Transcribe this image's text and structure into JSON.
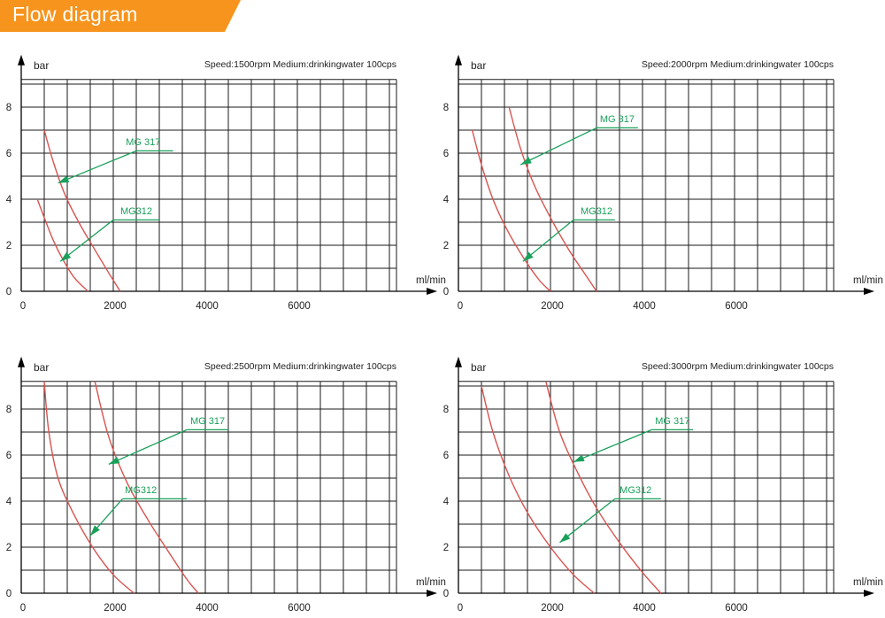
{
  "header": {
    "title": "Flow diagram",
    "accent_color": "#f7941d"
  },
  "colors": {
    "curve": "#d9534f",
    "label": "#19a05a",
    "grid": "#1a1a1a"
  },
  "chart_data": [
    {
      "type": "line",
      "title": "Speed:1500rpm   Medium:drinkingwater 100cps",
      "ylabel": "bar",
      "xlabel": "ml/min",
      "xlim": [
        0,
        8800
      ],
      "ylim": [
        0,
        9.2
      ],
      "xticks": [
        0,
        2000,
        4000,
        6000
      ],
      "yticks": [
        0,
        2,
        4,
        6,
        8
      ],
      "grid": true,
      "series": [
        {
          "name": "MG 317",
          "x": [
            500,
            700,
            950,
            1250,
            1600,
            1900,
            2150
          ],
          "y": [
            7,
            5.6,
            4.2,
            3.0,
            1.8,
            0.8,
            0
          ]
        },
        {
          "name": "MG312",
          "x": [
            350,
            500,
            700,
            900,
            1150,
            1450
          ],
          "y": [
            4,
            3.2,
            2.2,
            1.4,
            0.6,
            0
          ]
        }
      ],
      "annotations": [
        {
          "text": "MG 317",
          "x": 2650,
          "y": 6.35,
          "lx": [
            2500,
            3300
          ],
          "ly": 6.1,
          "ax": 800,
          "ay": 4.7
        },
        {
          "text": "MG312",
          "x": 2500,
          "y": 3.35,
          "lx": [
            2000,
            3000
          ],
          "ly": 3.1,
          "ax": 850,
          "ay": 1.3
        }
      ]
    },
    {
      "type": "line",
      "title": "Speed:2000rpm   Medium:drinkingwater 100cps",
      "ylabel": "bar",
      "xlabel": "ml/min",
      "xlim": [
        0,
        8800
      ],
      "ylim": [
        0,
        9.2
      ],
      "xticks": [
        0,
        2000,
        4000,
        6000
      ],
      "yticks": [
        0,
        2,
        4,
        6,
        8
      ],
      "grid": true,
      "series": [
        {
          "name": "MG 317",
          "x": [
            1100,
            1350,
            1650,
            2000,
            2400,
            2800,
            3000
          ],
          "y": [
            8,
            6.2,
            4.6,
            3.2,
            1.8,
            0.6,
            0
          ]
        },
        {
          "name": "MG312",
          "x": [
            300,
            500,
            750,
            1050,
            1400,
            1750,
            2000
          ],
          "y": [
            7,
            5.5,
            4.0,
            2.7,
            1.5,
            0.5,
            0
          ]
        }
      ],
      "annotations": [
        {
          "text": "MG 317",
          "x": 3450,
          "y": 7.35,
          "lx": [
            3000,
            3900
          ],
          "ly": 7.1,
          "ax": 1350,
          "ay": 5.5
        },
        {
          "text": "MG312",
          "x": 3000,
          "y": 3.35,
          "lx": [
            2500,
            3400
          ],
          "ly": 3.1,
          "ax": 1400,
          "ay": 1.3
        }
      ]
    },
    {
      "type": "line",
      "title": "Speed:2500rpm   Medium:drinkingwater 100cps",
      "ylabel": "bar",
      "xlabel": "ml/min",
      "xlim": [
        0,
        8800
      ],
      "ylim": [
        0,
        9.2
      ],
      "xticks": [
        0,
        2000,
        4000,
        6000
      ],
      "yticks": [
        0,
        2,
        4,
        6,
        8
      ],
      "grid": true,
      "series": [
        {
          "name": "MG 317",
          "x": [
            1600,
            1900,
            2300,
            2750,
            3200,
            3600,
            3850
          ],
          "y": [
            9.2,
            6.8,
            4.8,
            3.2,
            1.8,
            0.6,
            0
          ]
        },
        {
          "name": "MG312",
          "x": [
            500,
            600,
            800,
            1150,
            1550,
            2000,
            2450
          ],
          "y": [
            9.2,
            7.0,
            5.0,
            3.4,
            2.0,
            0.8,
            0
          ]
        }
      ],
      "annotations": [
        {
          "text": "MG 317",
          "x": 4050,
          "y": 7.35,
          "lx": [
            3600,
            4500
          ],
          "ly": 7.1,
          "ax": 1900,
          "ay": 5.6
        },
        {
          "text": "MG312",
          "x": 2600,
          "y": 4.35,
          "lx": [
            2200,
            3600
          ],
          "ly": 4.1,
          "ax": 1500,
          "ay": 2.5
        }
      ]
    },
    {
      "type": "line",
      "title": "Speed:3000rpm   Medium:drinkingwater 100cps",
      "ylabel": "bar",
      "xlabel": "ml/min",
      "xlim": [
        0,
        8800
      ],
      "ylim": [
        0,
        9.2
      ],
      "xticks": [
        0,
        2000,
        4000,
        6000
      ],
      "yticks": [
        0,
        2,
        4,
        6,
        8
      ],
      "grid": true,
      "series": [
        {
          "name": "MG 317",
          "x": [
            1900,
            2200,
            2600,
            3000,
            3500,
            4000,
            4400
          ],
          "y": [
            9.2,
            7.0,
            5.2,
            3.7,
            2.2,
            0.9,
            0
          ]
        },
        {
          "name": "MG312",
          "x": [
            500,
            750,
            1100,
            1500,
            2000,
            2500,
            2950
          ],
          "y": [
            9.0,
            7.0,
            5.1,
            3.5,
            2.0,
            0.8,
            0
          ]
        }
      ],
      "annotations": [
        {
          "text": "MG 317",
          "x": 4650,
          "y": 7.35,
          "lx": [
            4200,
            5100
          ],
          "ly": 7.1,
          "ax": 2500,
          "ay": 5.7
        },
        {
          "text": "MG312",
          "x": 3850,
          "y": 4.35,
          "lx": [
            3400,
            4400
          ],
          "ly": 4.1,
          "ax": 2200,
          "ay": 2.2
        }
      ]
    }
  ]
}
